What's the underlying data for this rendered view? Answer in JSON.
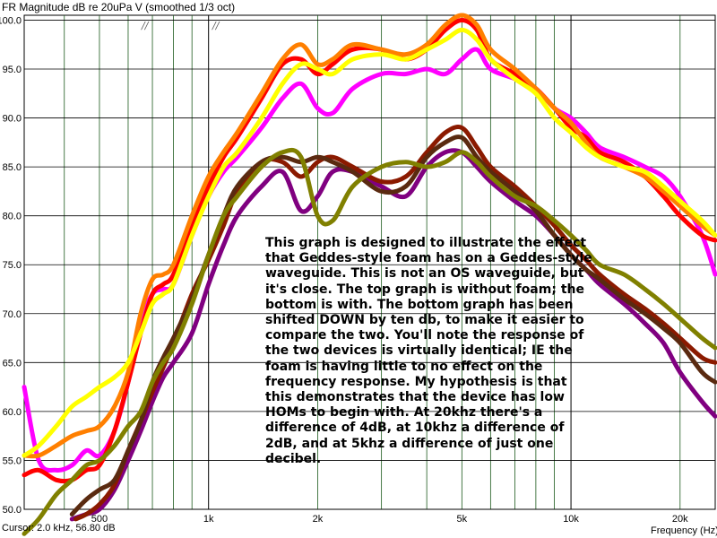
{
  "chart_data": {
    "type": "line",
    "title": "FR Magnitude dB re 20uPa V (smoothed 1/3 oct)",
    "xlabel": "Frequency (Hz)",
    "ylabel": "",
    "x_scale": "log",
    "xlim": [
      310,
      25000
    ],
    "ylim": [
      50,
      100.5
    ],
    "grid": true,
    "y_ticks": [
      50,
      55,
      60,
      65,
      70,
      75,
      80,
      85,
      90,
      95,
      100
    ],
    "y_tick_labels": [
      "50.0",
      "55.0",
      "60.0",
      "65.0",
      "70.0",
      "75.0",
      "80.0",
      "85.0",
      "90.0",
      "95.0",
      "100.0"
    ],
    "x_ticks": [
      500,
      1000,
      2000,
      5000,
      10000,
      20000
    ],
    "x_tick_labels": [
      "500",
      "1k",
      "2k",
      "5k",
      "10k",
      "20k"
    ],
    "cursor_readout": "Cursor: 2.0 kHz, 56.80 dB",
    "annotation": "This graph is designed to illustrate the effect that Geddes-style foam has on a Geddes-style waveguide.  This is not an OS waveguide, but it's close.  The top graph is without foam; the bottom is with.  The bottom graph has been shifted DOWN by ten db, to make it easier to compare the two.  You'll note the response of the two devices is virtually identical; IE the foam is having little to no effect on the frequency response.  My hypothesis is that this demonstrates that the device has low HOMs to begin with.  At 20khz there's a difference of 4dB, at 10khz a difference of 2dB, and at 5khz a difference of just one decibel.",
    "series": [
      {
        "color": "#ff00ff",
        "x": [
          310,
          340,
          380,
          420,
          460,
          500,
          550,
          600,
          650,
          700,
          750,
          800,
          900,
          1000,
          1100,
          1200,
          1400,
          1600,
          1800,
          2000,
          2200,
          2500,
          3000,
          3500,
          4000,
          4500,
          5000,
          5500,
          6000,
          7000,
          8000,
          9000,
          10000,
          11000,
          12000,
          14000,
          16000,
          18000,
          20000,
          23000,
          25000
        ],
        "y": [
          62.5,
          55,
          54,
          54.5,
          56,
          55.5,
          58,
          63,
          69,
          72,
          72.5,
          73,
          78,
          82,
          84.5,
          86,
          89,
          92,
          93.5,
          91,
          90.5,
          93,
          94.5,
          94.5,
          95,
          94.5,
          96,
          97,
          95,
          94,
          93,
          91,
          90,
          88.5,
          87,
          86,
          85,
          84,
          82,
          78,
          74
        ]
      },
      {
        "color": "#ff0000",
        "x": [
          310,
          340,
          380,
          420,
          460,
          500,
          550,
          600,
          650,
          700,
          750,
          800,
          900,
          1000,
          1100,
          1200,
          1400,
          1600,
          1800,
          2000,
          2200,
          2500,
          3000,
          3500,
          4000,
          4500,
          5000,
          5500,
          6000,
          7000,
          8000,
          9000,
          10000,
          11000,
          12000,
          14000,
          16000,
          18000,
          20000,
          23000,
          25000
        ],
        "y": [
          53.5,
          54,
          53,
          53,
          54,
          54.5,
          58,
          63,
          68,
          72,
          73,
          74,
          79,
          83,
          86,
          88,
          92,
          95.5,
          96,
          94.5,
          95.5,
          97,
          97,
          96,
          97,
          99,
          100,
          99,
          96,
          94.5,
          93,
          91,
          89,
          88,
          86.5,
          85.5,
          84,
          82,
          80,
          78,
          77.5
        ]
      },
      {
        "color": "#ff7f00",
        "x": [
          310,
          340,
          380,
          420,
          460,
          500,
          550,
          600,
          650,
          700,
          750,
          800,
          900,
          1000,
          1100,
          1200,
          1400,
          1600,
          1800,
          2000,
          2200,
          2500,
          3000,
          3500,
          4000,
          4500,
          5000,
          5500,
          6000,
          7000,
          8000,
          9000,
          10000,
          11000,
          12000,
          14000,
          16000,
          18000,
          20000,
          23000,
          25000
        ],
        "y": [
          55.5,
          55.5,
          56.5,
          57.5,
          58,
          58.5,
          60.5,
          64,
          70,
          73.5,
          74,
          75,
          80,
          84,
          86.5,
          88.5,
          92.5,
          96,
          97.5,
          95.5,
          96,
          97.5,
          97,
          96.5,
          97.5,
          99.5,
          100.5,
          99.5,
          97,
          95,
          93,
          91,
          89.5,
          87.5,
          86,
          85,
          84,
          82.5,
          81,
          79,
          78
        ]
      },
      {
        "color": "#ffff00",
        "x": [
          310,
          340,
          380,
          420,
          460,
          500,
          550,
          600,
          650,
          700,
          750,
          800,
          900,
          1000,
          1100,
          1200,
          1400,
          1600,
          1800,
          2000,
          2200,
          2500,
          3000,
          3500,
          4000,
          4500,
          5000,
          5500,
          6000,
          7000,
          8000,
          9000,
          10000,
          11000,
          12000,
          14000,
          16000,
          18000,
          20000,
          23000,
          25000
        ],
        "y": [
          55.5,
          56.5,
          58.5,
          60.5,
          61.5,
          62.5,
          63.5,
          65,
          68,
          71,
          72,
          73,
          78,
          82,
          85,
          86.5,
          90,
          93.5,
          95.5,
          95,
          94.5,
          96,
          96.5,
          96,
          97,
          98,
          99,
          98,
          96,
          94,
          92.5,
          90,
          88.5,
          87,
          86,
          85,
          84.5,
          83,
          81.5,
          79.5,
          78
        ]
      },
      {
        "color": "#800080",
        "x": [
          420,
          460,
          500,
          550,
          600,
          650,
          700,
          750,
          800,
          900,
          1000,
          1100,
          1200,
          1400,
          1600,
          1800,
          2000,
          2200,
          2500,
          3000,
          3500,
          4000,
          4500,
          5000,
          5500,
          6000,
          7000,
          8000,
          9000,
          10000,
          11000,
          12000,
          14000,
          16000,
          18000,
          20000,
          23000,
          25000
        ],
        "y": [
          49,
          49.5,
          50,
          52,
          55,
          58,
          61,
          63.5,
          65,
          68,
          73,
          77,
          80,
          83,
          84.5,
          80.5,
          82,
          84.5,
          84.5,
          83,
          82,
          85,
          86.5,
          86.5,
          85,
          83.5,
          81.5,
          80,
          78,
          76,
          74.5,
          73,
          71,
          69,
          67,
          64,
          61,
          59.5
        ]
      },
      {
        "color": "#8b1a00",
        "x": [
          430,
          460,
          500,
          550,
          600,
          650,
          700,
          750,
          800,
          900,
          1000,
          1100,
          1200,
          1400,
          1600,
          1800,
          2000,
          2200,
          2500,
          3000,
          3500,
          4000,
          4500,
          5000,
          5500,
          6000,
          7000,
          8000,
          9000,
          10000,
          11000,
          12000,
          14000,
          16000,
          18000,
          20000,
          23000,
          25000
        ],
        "y": [
          49,
          49.5,
          50.5,
          52.5,
          56,
          59,
          62,
          64.5,
          67,
          72,
          75.5,
          79,
          82.5,
          85.5,
          85.5,
          84,
          85.5,
          86,
          85,
          83.5,
          84,
          86.5,
          88.5,
          89,
          87,
          85,
          83,
          81,
          79,
          77,
          75.5,
          74,
          72,
          70.5,
          69,
          67.5,
          65.5,
          65
        ]
      },
      {
        "color": "#5a2a10",
        "x": [
          420,
          460,
          500,
          550,
          600,
          650,
          700,
          750,
          800,
          900,
          1000,
          1100,
          1200,
          1400,
          1600,
          1800,
          2000,
          2200,
          2500,
          3000,
          3500,
          4000,
          4500,
          5000,
          5500,
          6000,
          7000,
          8000,
          9000,
          10000,
          11000,
          12000,
          14000,
          16000,
          18000,
          20000,
          23000,
          25000
        ],
        "y": [
          49.5,
          51,
          52,
          53,
          56,
          59,
          63,
          65.5,
          67.5,
          71.5,
          76,
          80,
          83,
          85.5,
          86,
          85.5,
          86,
          85.5,
          84.5,
          82.5,
          83,
          86,
          87.5,
          88,
          86,
          84.5,
          82.5,
          80.5,
          78,
          76,
          74.5,
          73.5,
          71.5,
          70,
          68.5,
          67,
          64,
          63
        ]
      },
      {
        "color": "#808000",
        "x": [
          310,
          340,
          380,
          420,
          460,
          500,
          550,
          600,
          650,
          700,
          750,
          800,
          900,
          1000,
          1100,
          1200,
          1400,
          1600,
          1800,
          2000,
          2200,
          2500,
          3000,
          3500,
          4000,
          4500,
          5000,
          5500,
          6000,
          7000,
          8000,
          9000,
          10000,
          11000,
          12000,
          14000,
          16000,
          18000,
          20000,
          23000,
          25000
        ],
        "y": [
          47.5,
          49,
          51.5,
          53,
          54.5,
          55,
          56.5,
          58.5,
          60,
          63,
          65,
          66.5,
          71,
          76,
          80,
          82,
          85,
          86.5,
          86,
          80,
          79.5,
          83,
          85,
          85.5,
          85,
          85.5,
          86.5,
          85.5,
          84,
          82,
          81,
          79.5,
          78,
          76.5,
          75,
          74,
          72.5,
          71,
          69.5,
          67.5,
          66.5
        ]
      }
    ]
  }
}
